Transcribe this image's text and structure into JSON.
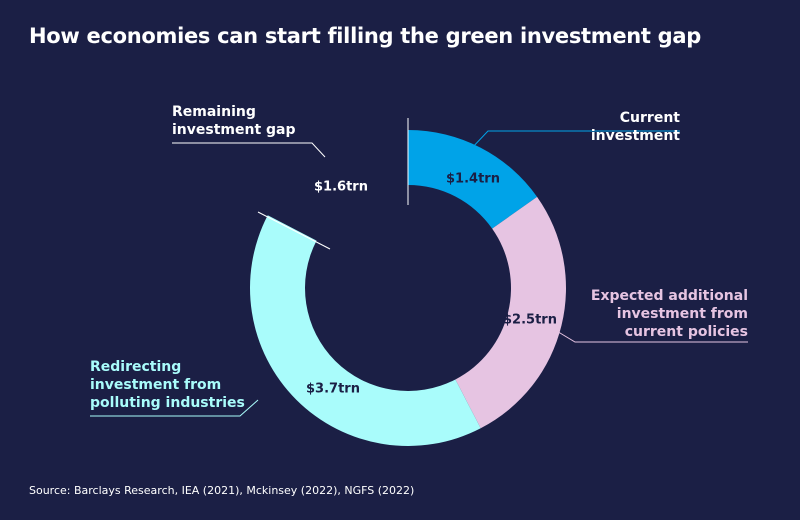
{
  "chart_data": {
    "type": "donut",
    "title": "How economies can start filling the green investment gap",
    "source": "Source: Barclays Research, IEA (2021), Mckinsey (2022), NGFS (2022)",
    "categories": [
      "Current investment",
      "Expected additional investment from current policies",
      "Redirecting investment from polluting industries",
      "Remaining investment gap"
    ],
    "values": [
      1.4,
      2.5,
      3.7,
      1.6
    ],
    "value_labels": [
      "$1.4trn",
      "$2.5trn",
      "$3.7trn",
      "$1.6trn"
    ],
    "colors": [
      "#00a3e8",
      "#e6c4e2",
      "#a9fcfb",
      "none"
    ]
  }
}
